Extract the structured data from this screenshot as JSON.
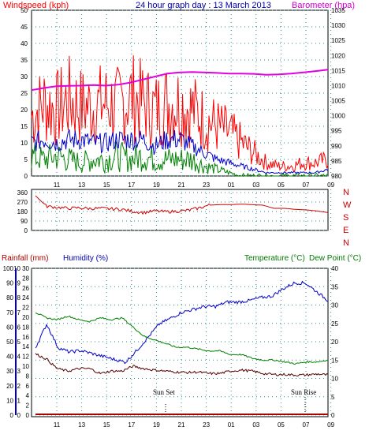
{
  "header": {
    "windspeed_label": "Windspeed (kph)",
    "title": "24 hour graph day : 13 March 2013",
    "barometer_label": "Barometer (hpa)"
  },
  "labels": {
    "rainfall": "Rainfall (mm)",
    "humidity": "Humidity (%)",
    "temperature": "Temperature (°C)",
    "dewpoint": "Dew Point (°C)",
    "sunset": "Sun Set",
    "sunrise": "Sun Rise"
  },
  "colors": {
    "wind_max": "#ff0000",
    "wind_avg": "#0000cc",
    "wind_min": "#008000",
    "barometer": "#e000e0",
    "direction": "#cc0000",
    "humidity": "#0000cc",
    "temperature": "#008000",
    "dewpoint": "#550000",
    "rain": "#aa0000"
  },
  "chart_data": [
    {
      "type": "line",
      "name": "wind-barometer",
      "x_ticks": [
        "11",
        "13",
        "15",
        "17",
        "19",
        "21",
        "23",
        "01",
        "03",
        "05",
        "07",
        "09"
      ],
      "left_axis": {
        "label": "Windspeed (kph)",
        "range": [
          0,
          50
        ],
        "ticks": [
          0,
          5,
          10,
          15,
          20,
          25,
          30,
          35,
          40,
          45,
          50
        ]
      },
      "right_axis": {
        "label": "Barometer (hpa)",
        "range": [
          980,
          1035
        ],
        "ticks": [
          980,
          985,
          990,
          995,
          1000,
          1005,
          1010,
          1015,
          1020,
          1025,
          1030,
          1035
        ]
      },
      "series": [
        {
          "name": "Wind max",
          "axis": "left",
          "values": [
            18,
            22,
            20,
            23,
            21,
            21,
            22,
            21,
            24,
            22,
            20,
            22,
            22,
            20,
            17,
            15,
            13,
            10,
            7,
            4,
            3,
            3,
            4,
            4,
            5
          ]
        },
        {
          "name": "Wind average",
          "axis": "left",
          "values": [
            10,
            11,
            10,
            11,
            11,
            10,
            10,
            11,
            11,
            11,
            9,
            11,
            11,
            9,
            7,
            5,
            4,
            3,
            2,
            1,
            1,
            1,
            1,
            1,
            2
          ]
        },
        {
          "name": "Wind minimum",
          "axis": "left",
          "values": [
            6,
            5,
            6,
            5,
            4,
            5,
            5,
            6,
            5,
            6,
            5,
            5,
            5,
            5,
            3,
            2,
            1,
            0,
            0,
            0,
            0,
            0,
            0,
            0,
            0
          ]
        },
        {
          "name": "Barometer",
          "axis": "right",
          "values": [
            1008.5,
            1009.2,
            1009.8,
            1009.9,
            1010.0,
            1010.2,
            1010.0,
            1010.3,
            1011.0,
            1012.0,
            1013.0,
            1014.0,
            1014.4,
            1014.5,
            1014.4,
            1014.2,
            1014.0,
            1014.0,
            1013.9,
            1013.6,
            1013.7,
            1014.0,
            1014.4,
            1014.8,
            1015.3
          ]
        }
      ]
    },
    {
      "type": "line",
      "name": "wind-direction",
      "x_ticks": [
        "11",
        "13",
        "15",
        "17",
        "19",
        "21",
        "23",
        "01",
        "03",
        "05",
        "07",
        "09"
      ],
      "left_axis": {
        "range": [
          0,
          360
        ],
        "ticks": [
          0,
          90,
          180,
          270,
          360
        ]
      },
      "right_labels": [
        "N",
        "W",
        "S",
        "E",
        "N"
      ],
      "series": [
        {
          "name": "Direction",
          "values": [
            330,
            230,
            220,
            210,
            215,
            208,
            210,
            205,
            200,
            180,
            170,
            185,
            178,
            182,
            190,
            210,
            240,
            245,
            245,
            250,
            245,
            240,
            210,
            210,
            200,
            195,
            185,
            170
          ]
        }
      ]
    },
    {
      "type": "line",
      "name": "temp-humidity-rain",
      "x_ticks": [
        "11",
        "13",
        "15",
        "17",
        "19",
        "21",
        "23",
        "01",
        "03",
        "05",
        "07",
        "09"
      ],
      "rain_axis": {
        "label": "Rainfall (mm)",
        "range": [
          0,
          10
        ],
        "ticks": [
          0,
          1,
          2,
          3,
          4,
          5,
          6,
          7,
          8,
          9,
          10
        ]
      },
      "humidity_axis": {
        "label": "Humidity (%)",
        "range": [
          0,
          100
        ],
        "ticks": [
          0,
          10,
          20,
          30,
          40,
          50,
          60,
          70,
          80,
          90,
          100
        ]
      },
      "temp_axis_left": {
        "range": [
          0,
          30
        ],
        "ticks": [
          0,
          2,
          4,
          6,
          8,
          10,
          12,
          14,
          16,
          18,
          20,
          22,
          24,
          26,
          28,
          30
        ]
      },
      "temp_axis_right": {
        "label": "Temperature (°C)",
        "range": [
          0,
          40
        ],
        "ticks": [
          0,
          5,
          10,
          15,
          20,
          25,
          30,
          35,
          40
        ]
      },
      "series": [
        {
          "name": "Humidity",
          "axis": "humidity",
          "values": [
            46,
            62,
            46,
            43,
            44,
            42,
            40,
            38,
            36,
            44,
            53,
            62,
            66,
            70,
            72,
            74,
            74,
            77,
            77,
            78,
            80,
            81,
            86,
            90,
            90,
            84,
            78
          ]
        },
        {
          "name": "Temperature",
          "axis": "temp_right",
          "values": [
            28,
            26.5,
            26,
            27,
            26,
            25.5,
            26.5,
            26,
            26.5,
            24,
            21.5,
            20.5,
            19.5,
            18.5,
            18.5,
            18,
            17.5,
            17.5,
            16.5,
            16.5,
            15.5,
            15,
            15,
            14.5,
            14,
            14.5,
            14.5,
            15
          ]
        },
        {
          "name": "Dew Point",
          "axis": "temp_left",
          "values": [
            12.5,
            11.5,
            9.5,
            9,
            9.5,
            9.5,
            8.5,
            9,
            9,
            10,
            9.5,
            9.2,
            9,
            8.8,
            8.7,
            8.8,
            8.5,
            8.5,
            9,
            9.2,
            9,
            8.5,
            8.3,
            8.3,
            8.2,
            8.2,
            8.4,
            8.2
          ]
        },
        {
          "name": "Rainfall",
          "axis": "rain",
          "values": [
            0,
            0,
            0,
            0,
            0,
            0,
            0,
            0,
            0,
            0,
            0,
            0,
            0,
            0,
            0,
            0,
            0,
            0,
            0,
            0,
            0,
            0,
            0,
            0,
            0,
            0,
            0,
            0
          ]
        }
      ],
      "annotations": [
        "Sun Set",
        "Sun Rise"
      ]
    }
  ]
}
